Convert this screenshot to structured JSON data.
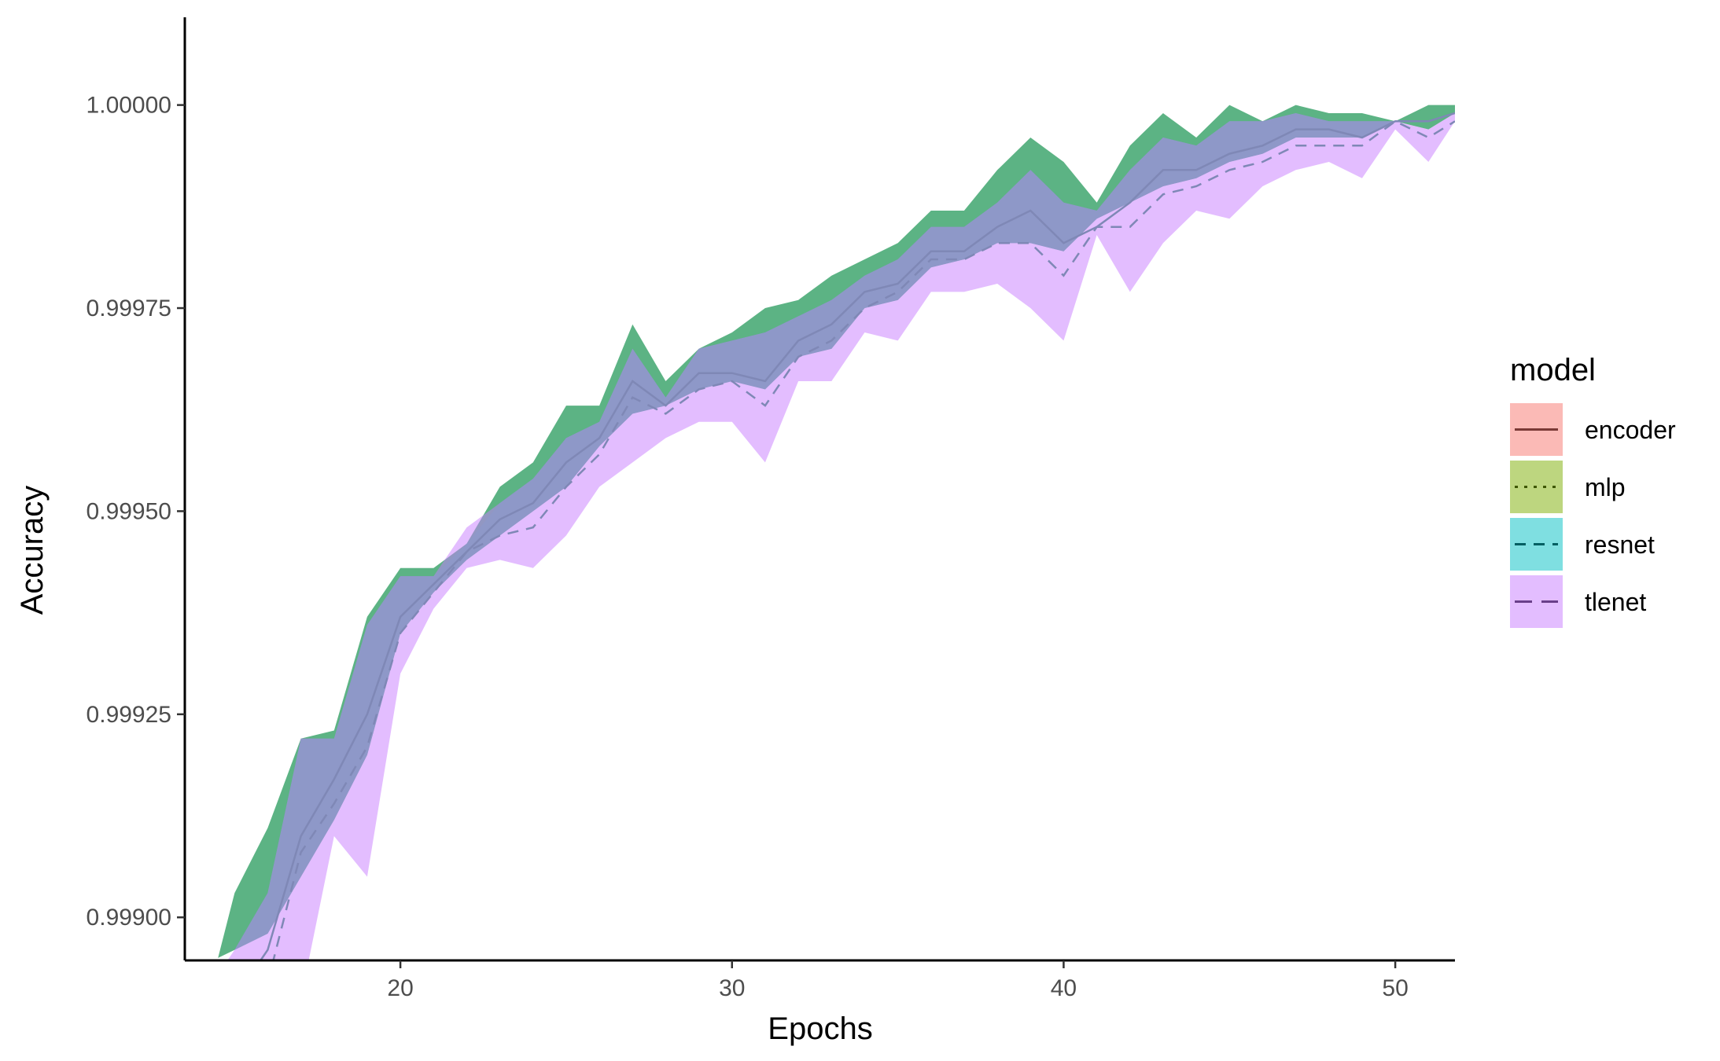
{
  "chart_data": {
    "type": "area",
    "xlabel": "Epochs",
    "ylabel": "Accuracy",
    "xlim": [
      13.5,
      51.8
    ],
    "ylim": [
      0.998947,
      1.000108
    ],
    "x_ticks": [
      20,
      30,
      40,
      50
    ],
    "x_tick_labels": [
      "20",
      "30",
      "40",
      "50"
    ],
    "y_ticks": [
      0.999,
      0.99925,
      0.9995,
      0.99975,
      1.0
    ],
    "y_tick_labels": [
      "0.99900",
      "0.99925",
      "0.99950",
      "0.99975",
      "1.00000"
    ],
    "grid": false,
    "legend": {
      "title": "model",
      "position": "right",
      "entries": [
        {
          "label": "encoder",
          "fill": "#F8766D",
          "line": "#7a3a36",
          "dash": "solid"
        },
        {
          "label": "mlp",
          "fill": "#7CAE00",
          "line": "#3e5700",
          "dash": "dotted"
        },
        {
          "label": "resnet",
          "fill": "#00BFC4",
          "line": "#005f62",
          "dash": "dashed"
        },
        {
          "label": "tlenet",
          "fill": "#C77CFF",
          "line": "#6a3f8a",
          "dash": "longdash"
        }
      ]
    },
    "band_colors": {
      "outer": "#2e9e62",
      "inner": "#c77cff",
      "overlap": "#8e98c8",
      "line": "#7f88b6"
    },
    "x": [
      14.5,
      15,
      16,
      17,
      18,
      19,
      20,
      21,
      22,
      23,
      24,
      25,
      26,
      27,
      28,
      29,
      30,
      31,
      32,
      33,
      34,
      35,
      36,
      37,
      38,
      39,
      40,
      41,
      42,
      43,
      44,
      45,
      46,
      47,
      48,
      49,
      50,
      51,
      51.8
    ],
    "series": [
      {
        "role": "outer-band",
        "upper": [
          0.99895,
          0.99903,
          0.99911,
          0.99922,
          0.99923,
          0.99937,
          0.99943,
          0.99943,
          0.99946,
          0.99953,
          0.99956,
          0.99963,
          0.99963,
          0.99973,
          0.99966,
          0.9997,
          0.99972,
          0.99975,
          0.99976,
          0.99979,
          0.99981,
          0.99983,
          0.99987,
          0.99987,
          0.99992,
          0.99996,
          0.99993,
          0.99988,
          0.99995,
          0.99999,
          0.99996,
          1.0,
          0.99998,
          1.0,
          0.99999,
          0.99999,
          0.99998,
          1.0,
          1.0
        ],
        "lower": [
          0.99895,
          0.99896,
          0.99898,
          0.99905,
          0.99912,
          0.9992,
          0.99935,
          0.9994,
          0.99944,
          0.99947,
          0.9995,
          0.99953,
          0.99958,
          0.99962,
          0.99963,
          0.99965,
          0.99966,
          0.99965,
          0.99969,
          0.9997,
          0.99975,
          0.99976,
          0.9998,
          0.99981,
          0.99983,
          0.99983,
          0.99982,
          0.99986,
          0.99988,
          0.9999,
          0.99991,
          0.99993,
          0.99994,
          0.99996,
          0.99996,
          0.99996,
          0.99998,
          0.99997,
          0.99999
        ]
      },
      {
        "role": "inner-band",
        "upper": [
          0.99893,
          0.99896,
          0.99903,
          0.99922,
          0.99922,
          0.99936,
          0.99942,
          0.99942,
          0.99948,
          0.99951,
          0.99954,
          0.99959,
          0.99961,
          0.9997,
          0.99964,
          0.9997,
          0.99971,
          0.99972,
          0.99974,
          0.99976,
          0.99979,
          0.99981,
          0.99985,
          0.99985,
          0.99988,
          0.99992,
          0.99988,
          0.99987,
          0.99992,
          0.99996,
          0.99995,
          0.99998,
          0.99998,
          0.99999,
          0.99998,
          0.99998,
          0.99998,
          0.99997,
          0.99999
        ],
        "lower": [
          0.9988,
          0.99882,
          0.99885,
          0.9989,
          0.9991,
          0.99905,
          0.9993,
          0.99938,
          0.99943,
          0.99944,
          0.99943,
          0.99947,
          0.99953,
          0.99956,
          0.99959,
          0.99961,
          0.99961,
          0.99956,
          0.99966,
          0.99966,
          0.99972,
          0.99971,
          0.99977,
          0.99977,
          0.99978,
          0.99975,
          0.99971,
          0.99984,
          0.99977,
          0.99983,
          0.99987,
          0.99986,
          0.9999,
          0.99992,
          0.99993,
          0.99991,
          0.99997,
          0.99993,
          0.99998
        ]
      },
      {
        "role": "mean-line",
        "dash": "solid",
        "values": [
          0.99887,
          0.9989,
          0.99896,
          0.9991,
          0.99917,
          0.99925,
          0.99937,
          0.99941,
          0.99945,
          0.99949,
          0.99951,
          0.99956,
          0.99959,
          0.99966,
          0.99963,
          0.99967,
          0.99967,
          0.99966,
          0.99971,
          0.99973,
          0.99977,
          0.99978,
          0.99982,
          0.99982,
          0.99985,
          0.99987,
          0.99983,
          0.99985,
          0.99988,
          0.99992,
          0.99992,
          0.99994,
          0.99995,
          0.99997,
          0.99997,
          0.99996,
          0.99998,
          0.99998,
          0.99999
        ]
      },
      {
        "role": "mean-line",
        "dash": "dashed",
        "values": [
          0.99882,
          0.99885,
          0.99892,
          0.99908,
          0.99914,
          0.99921,
          0.99935,
          0.9994,
          0.99945,
          0.99947,
          0.99948,
          0.99953,
          0.99957,
          0.99964,
          0.99962,
          0.99965,
          0.99966,
          0.99963,
          0.99969,
          0.99971,
          0.99975,
          0.99977,
          0.99981,
          0.99981,
          0.99983,
          0.99983,
          0.99979,
          0.99985,
          0.99985,
          0.99989,
          0.9999,
          0.99992,
          0.99993,
          0.99995,
          0.99995,
          0.99995,
          0.99998,
          0.99996,
          0.99998
        ]
      }
    ]
  }
}
